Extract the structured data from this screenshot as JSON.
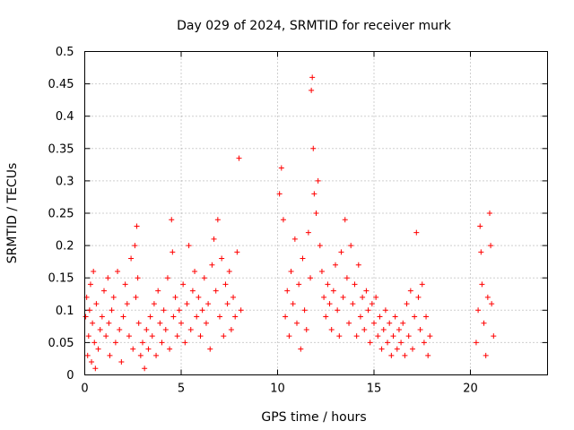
{
  "chart_data": {
    "type": "scatter",
    "title": "Day 029 of 2024, SRMTID for receiver murk",
    "xlabel": "GPS time / hours",
    "ylabel": "SRMTID / TECUs",
    "xlim": [
      0,
      24
    ],
    "ylim": [
      0,
      0.5
    ],
    "xticks": [
      0,
      5,
      10,
      15,
      20
    ],
    "xtick_labels": [
      "0",
      "5",
      "10",
      "15",
      "20"
    ],
    "yticks": [
      0,
      0.05,
      0.1,
      0.15,
      0.2,
      0.25,
      0.3,
      0.35,
      0.4,
      0.45,
      0.5
    ],
    "ytick_labels": [
      "0",
      "0.05",
      "0.1",
      "0.15",
      "0.2",
      "0.25",
      "0.3",
      "0.35",
      "0.4",
      "0.45",
      "0.5"
    ],
    "grid": true,
    "marker": "+",
    "color": "#ff0000",
    "series": [
      {
        "points": [
          [
            0.05,
            0.09
          ],
          [
            0.1,
            0.12
          ],
          [
            0.15,
            0.03
          ],
          [
            0.2,
            0.06
          ],
          [
            0.25,
            0.1
          ],
          [
            0.3,
            0.14
          ],
          [
            0.35,
            0.02
          ],
          [
            0.4,
            0.08
          ],
          [
            0.45,
            0.16
          ],
          [
            0.5,
            0.05
          ],
          [
            0.55,
            0.01
          ],
          [
            0.6,
            0.11
          ],
          [
            0.7,
            0.04
          ],
          [
            0.8,
            0.07
          ],
          [
            0.9,
            0.09
          ],
          [
            1.0,
            0.13
          ],
          [
            1.1,
            0.06
          ],
          [
            1.2,
            0.15
          ],
          [
            1.25,
            0.08
          ],
          [
            1.3,
            0.03
          ],
          [
            1.4,
            0.1
          ],
          [
            1.5,
            0.12
          ],
          [
            1.6,
            0.05
          ],
          [
            1.7,
            0.16
          ],
          [
            1.8,
            0.07
          ],
          [
            1.9,
            0.02
          ],
          [
            2.0,
            0.09
          ],
          [
            2.1,
            0.14
          ],
          [
            2.2,
            0.11
          ],
          [
            2.3,
            0.06
          ],
          [
            2.4,
            0.18
          ],
          [
            2.5,
            0.04
          ],
          [
            2.6,
            0.2
          ],
          [
            2.65,
            0.12
          ],
          [
            2.7,
            0.23
          ],
          [
            2.75,
            0.15
          ],
          [
            2.8,
            0.08
          ],
          [
            2.9,
            0.03
          ],
          [
            3.0,
            0.05
          ],
          [
            3.1,
            0.01
          ],
          [
            3.2,
            0.07
          ],
          [
            3.3,
            0.04
          ],
          [
            3.4,
            0.09
          ],
          [
            3.5,
            0.06
          ],
          [
            3.6,
            0.11
          ],
          [
            3.7,
            0.03
          ],
          [
            3.8,
            0.13
          ],
          [
            3.9,
            0.08
          ],
          [
            4.0,
            0.05
          ],
          [
            4.1,
            0.1
          ],
          [
            4.2,
            0.07
          ],
          [
            4.3,
            0.15
          ],
          [
            4.4,
            0.04
          ],
          [
            4.5,
            0.24
          ],
          [
            4.55,
            0.19
          ],
          [
            4.6,
            0.09
          ],
          [
            4.7,
            0.12
          ],
          [
            4.8,
            0.06
          ],
          [
            4.9,
            0.1
          ],
          [
            5.0,
            0.08
          ],
          [
            5.1,
            0.14
          ],
          [
            5.2,
            0.05
          ],
          [
            5.3,
            0.11
          ],
          [
            5.4,
            0.2
          ],
          [
            5.5,
            0.07
          ],
          [
            5.6,
            0.13
          ],
          [
            5.7,
            0.16
          ],
          [
            5.8,
            0.09
          ],
          [
            5.9,
            0.12
          ],
          [
            6.0,
            0.06
          ],
          [
            6.1,
            0.1
          ],
          [
            6.2,
            0.15
          ],
          [
            6.3,
            0.08
          ],
          [
            6.4,
            0.11
          ],
          [
            6.5,
            0.04
          ],
          [
            6.6,
            0.17
          ],
          [
            6.7,
            0.21
          ],
          [
            6.8,
            0.13
          ],
          [
            6.9,
            0.24
          ],
          [
            7.0,
            0.09
          ],
          [
            7.1,
            0.18
          ],
          [
            7.2,
            0.06
          ],
          [
            7.3,
            0.14
          ],
          [
            7.4,
            0.11
          ],
          [
            7.5,
            0.16
          ],
          [
            7.6,
            0.07
          ],
          [
            7.7,
            0.12
          ],
          [
            7.8,
            0.09
          ],
          [
            7.9,
            0.19
          ],
          [
            8.0,
            0.335
          ],
          [
            8.1,
            0.1
          ],
          [
            10.1,
            0.28
          ],
          [
            10.2,
            0.32
          ],
          [
            10.3,
            0.24
          ],
          [
            10.4,
            0.09
          ],
          [
            10.5,
            0.13
          ],
          [
            10.6,
            0.06
          ],
          [
            10.7,
            0.16
          ],
          [
            10.8,
            0.11
          ],
          [
            10.9,
            0.21
          ],
          [
            11.0,
            0.08
          ],
          [
            11.1,
            0.14
          ],
          [
            11.2,
            0.04
          ],
          [
            11.3,
            0.18
          ],
          [
            11.4,
            0.1
          ],
          [
            11.5,
            0.07
          ],
          [
            11.6,
            0.22
          ],
          [
            11.7,
            0.15
          ],
          [
            11.75,
            0.44
          ],
          [
            11.8,
            0.46
          ],
          [
            11.85,
            0.35
          ],
          [
            11.9,
            0.28
          ],
          [
            12.0,
            0.25
          ],
          [
            12.1,
            0.3
          ],
          [
            12.2,
            0.2
          ],
          [
            12.3,
            0.16
          ],
          [
            12.4,
            0.12
          ],
          [
            12.5,
            0.09
          ],
          [
            12.6,
            0.14
          ],
          [
            12.7,
            0.11
          ],
          [
            12.8,
            0.07
          ],
          [
            12.9,
            0.13
          ],
          [
            13.0,
            0.17
          ],
          [
            13.1,
            0.1
          ],
          [
            13.2,
            0.06
          ],
          [
            13.3,
            0.19
          ],
          [
            13.4,
            0.12
          ],
          [
            13.5,
            0.24
          ],
          [
            13.6,
            0.15
          ],
          [
            13.7,
            0.08
          ],
          [
            13.8,
            0.2
          ],
          [
            13.9,
            0.11
          ],
          [
            14.0,
            0.14
          ],
          [
            14.1,
            0.06
          ],
          [
            14.2,
            0.17
          ],
          [
            14.3,
            0.09
          ],
          [
            14.4,
            0.12
          ],
          [
            14.5,
            0.07
          ],
          [
            14.6,
            0.13
          ],
          [
            14.7,
            0.1
          ],
          [
            14.8,
            0.05
          ],
          [
            14.9,
            0.11
          ],
          [
            15.0,
            0.08
          ],
          [
            15.1,
            0.12
          ],
          [
            15.2,
            0.06
          ],
          [
            15.3,
            0.09
          ],
          [
            15.4,
            0.04
          ],
          [
            15.5,
            0.07
          ],
          [
            15.6,
            0.1
          ],
          [
            15.7,
            0.05
          ],
          [
            15.8,
            0.08
          ],
          [
            15.9,
            0.03
          ],
          [
            16.0,
            0.06
          ],
          [
            16.1,
            0.09
          ],
          [
            16.2,
            0.04
          ],
          [
            16.3,
            0.07
          ],
          [
            16.4,
            0.05
          ],
          [
            16.5,
            0.08
          ],
          [
            16.6,
            0.03
          ],
          [
            16.7,
            0.11
          ],
          [
            16.8,
            0.06
          ],
          [
            16.9,
            0.13
          ],
          [
            17.0,
            0.04
          ],
          [
            17.1,
            0.09
          ],
          [
            17.2,
            0.22
          ],
          [
            17.3,
            0.12
          ],
          [
            17.4,
            0.07
          ],
          [
            17.5,
            0.14
          ],
          [
            17.6,
            0.05
          ],
          [
            17.7,
            0.09
          ],
          [
            17.8,
            0.03
          ],
          [
            17.9,
            0.06
          ],
          [
            20.3,
            0.05
          ],
          [
            20.4,
            0.1
          ],
          [
            20.5,
            0.23
          ],
          [
            20.55,
            0.19
          ],
          [
            20.6,
            0.14
          ],
          [
            20.7,
            0.08
          ],
          [
            20.8,
            0.03
          ],
          [
            20.9,
            0.12
          ],
          [
            21.0,
            0.25
          ],
          [
            21.05,
            0.2
          ],
          [
            21.1,
            0.11
          ],
          [
            21.2,
            0.06
          ]
        ]
      }
    ]
  }
}
